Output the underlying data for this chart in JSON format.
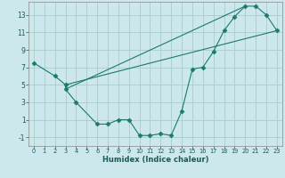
{
  "title": "",
  "xlabel": "Humidex (Indice chaleur)",
  "bg_color": "#cce8ec",
  "grid_color": "#aacccc",
  "line_color": "#1a7a6e",
  "xlim": [
    -0.5,
    23.5
  ],
  "ylim": [
    -2.0,
    14.5
  ],
  "xticks": [
    0,
    1,
    2,
    3,
    4,
    5,
    6,
    7,
    8,
    9,
    10,
    11,
    12,
    13,
    14,
    15,
    16,
    17,
    18,
    19,
    20,
    21,
    22,
    23
  ],
  "yticks": [
    -1,
    1,
    3,
    5,
    7,
    9,
    11,
    13
  ],
  "main_x": [
    0,
    2,
    3,
    3,
    4,
    6,
    7,
    8,
    9,
    10,
    11,
    12,
    13,
    14,
    15,
    16,
    17,
    18,
    19,
    20,
    21,
    22,
    23
  ],
  "main_y": [
    7.5,
    6.0,
    5.0,
    4.5,
    3.0,
    0.5,
    0.5,
    1.0,
    1.0,
    -0.8,
    -0.8,
    -0.6,
    -0.8,
    2.0,
    6.8,
    7.0,
    8.8,
    11.2,
    12.8,
    14.0,
    14.0,
    13.0,
    11.2
  ],
  "line1_x": [
    3,
    23
  ],
  "line1_y": [
    5.0,
    11.2
  ],
  "line2_x": [
    3,
    20
  ],
  "line2_y": [
    4.5,
    14.0
  ]
}
